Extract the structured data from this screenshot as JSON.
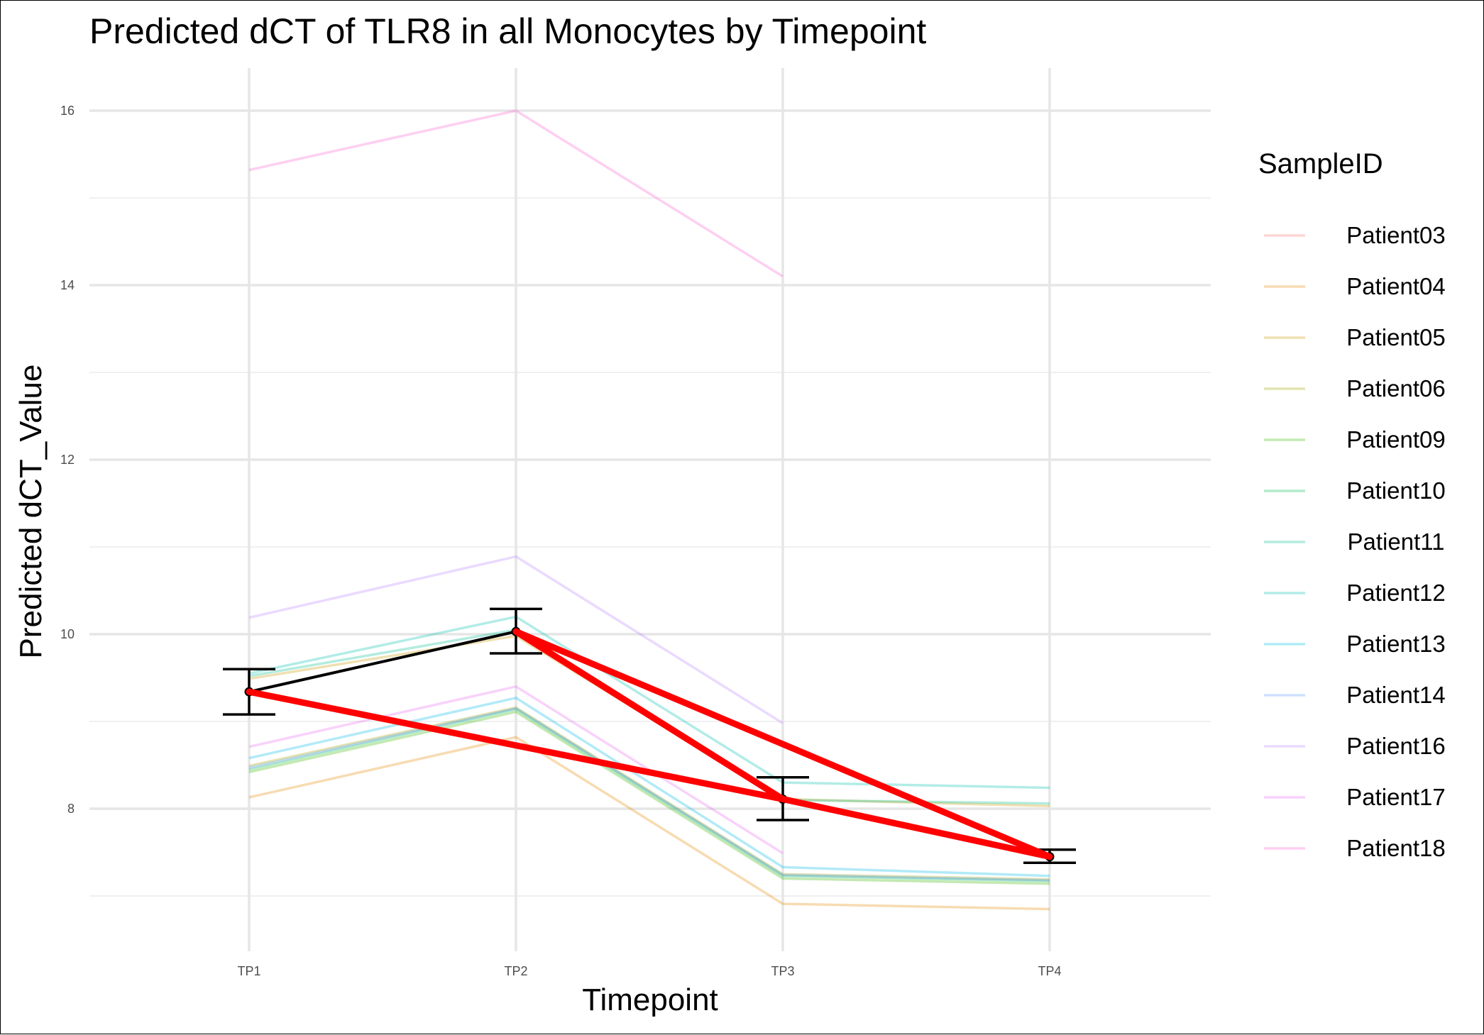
{
  "chart_data": {
    "type": "line",
    "title": "Predicted dCT of  TLR8 in  all  Monocytes by Timepoint",
    "xlabel": "Timepoint",
    "ylabel": "Predicted dCT_Value",
    "categories": [
      "TP1",
      "TP2",
      "TP3",
      "TP4"
    ],
    "ylim": [
      6.5,
      16.5
    ],
    "yticks": [
      8,
      10,
      12,
      14,
      16
    ],
    "grid": true,
    "legend_title": "SampleID",
    "legend_position": "right",
    "series": [
      {
        "name": "Patient03",
        "color": "#f8766d",
        "values": [
          null,
          null,
          null,
          null
        ]
      },
      {
        "name": "Patient04",
        "color": "#e58700",
        "values": [
          8.13,
          8.82,
          6.91,
          6.85
        ]
      },
      {
        "name": "Patient05",
        "color": "#c99800",
        "values": [
          9.49,
          9.98,
          8.11,
          8.03
        ]
      },
      {
        "name": "Patient06",
        "color": "#a3a500",
        "values": [
          8.49,
          9.16,
          7.25,
          7.19
        ]
      },
      {
        "name": "Patient09",
        "color": "#39b600",
        "values": [
          8.42,
          9.11,
          7.2,
          7.14
        ]
      },
      {
        "name": "Patient10",
        "color": "#00bb4e",
        "values": [
          8.45,
          9.14,
          7.23,
          7.17
        ]
      },
      {
        "name": "Patient11",
        "color": "#00bf95",
        "values": [
          9.52,
          10.05,
          8.1,
          8.06
        ]
      },
      {
        "name": "Patient12",
        "color": "#00c0af",
        "values": [
          9.55,
          10.2,
          8.3,
          8.24
        ]
      },
      {
        "name": "Patient13",
        "color": "#00b8e7",
        "values": [
          8.58,
          9.27,
          7.33,
          7.23
        ]
      },
      {
        "name": "Patient14",
        "color": "#619cff",
        "values": [
          8.47,
          9.15,
          7.24,
          7.18
        ]
      },
      {
        "name": "Patient16",
        "color": "#b983ff",
        "values": [
          10.19,
          10.89,
          8.98,
          null
        ]
      },
      {
        "name": "Patient17",
        "color": "#e76bf3",
        "values": [
          8.71,
          9.4,
          7.49,
          null
        ]
      },
      {
        "name": "Patient18",
        "color": "#fd61d1",
        "values": [
          15.32,
          16.0,
          14.1,
          null
        ]
      }
    ],
    "mean": {
      "values": [
        9.34,
        10.03,
        8.11,
        7.45
      ],
      "error_low": [
        9.08,
        9.78,
        7.87,
        7.38
      ],
      "error_high": [
        9.6,
        10.29,
        8.36,
        7.53
      ],
      "color": "#000000"
    },
    "red_lines": {
      "color": "#ff0000",
      "path": [
        [
          0,
          9.34
        ],
        [
          2,
          8.11
        ],
        [
          3,
          7.45
        ],
        [
          1,
          10.03
        ],
        [
          2,
          8.11
        ]
      ]
    }
  }
}
